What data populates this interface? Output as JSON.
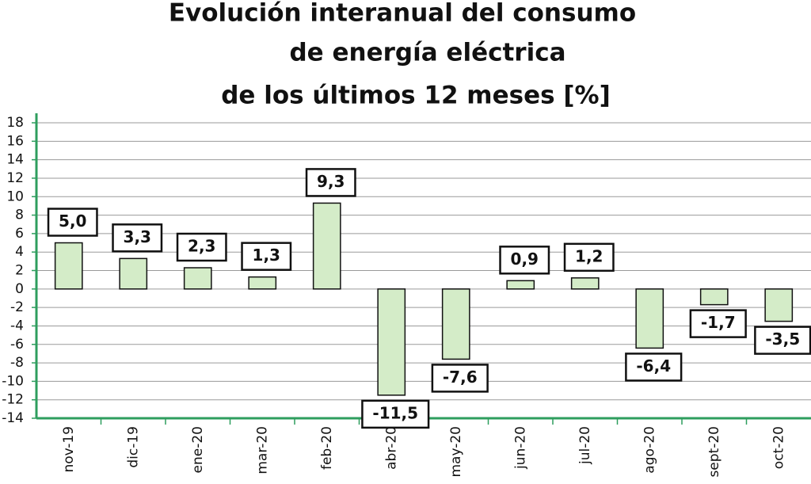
{
  "chart_data": {
    "type": "bar",
    "title": [
      "Evolución interanual del consumo",
      "de energía eléctrica",
      "de los últimos 12 meses [%]"
    ],
    "categories": [
      "nov-19",
      "dic-19",
      "ene-20",
      "mar-20",
      "feb-20",
      "abr-20",
      "may-20",
      "jun-20",
      "jul-20",
      "ago-20",
      "sept-20",
      "oct-20"
    ],
    "values": [
      5.0,
      3.3,
      2.3,
      1.3,
      9.3,
      -11.5,
      -7.6,
      0.9,
      1.2,
      -6.4,
      -1.7,
      -3.5
    ],
    "value_labels": [
      "5,0",
      "3,3",
      "2,3",
      "1,3",
      "9,3",
      "-11,5",
      "-7,6",
      "0,9",
      "1,2",
      "-6,4",
      "-1,7",
      "-3,5"
    ],
    "color": "#d4ecc8",
    "ylim": [
      -14,
      18
    ],
    "yticks": [
      -14,
      -12,
      -10,
      -8,
      -6,
      -4,
      -2,
      0,
      2,
      4,
      6,
      8,
      10,
      12,
      14,
      16,
      18
    ],
    "grid": true
  }
}
